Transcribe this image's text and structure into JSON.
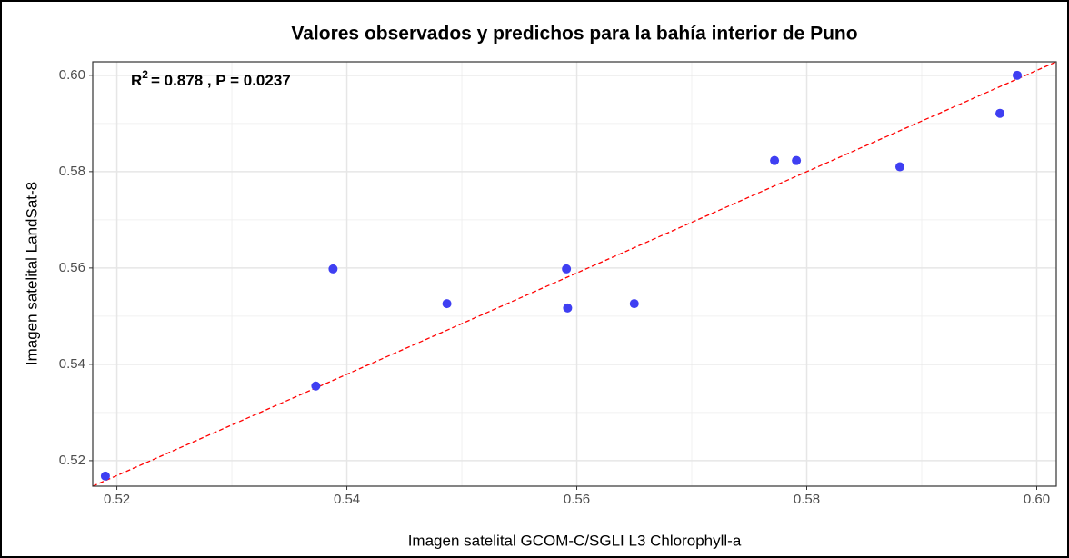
{
  "chart_data": {
    "type": "scatter",
    "title": "Valores observados y predichos para la bahía interior de Puno",
    "x_label": "Imagen satelital GCOM-C/SGLI L3 Chlorophyll-a",
    "y_label": "Imagen satelital LandSat-8",
    "annotation": {
      "base": "R",
      "superscript": "2",
      "rest": "= 0.878 , P = 0.0237"
    },
    "x": [
      0.519,
      0.5373,
      0.5388,
      0.5487,
      0.5591,
      0.5592,
      0.565,
      0.5772,
      0.5791,
      0.5881,
      0.5968,
      0.5983
    ],
    "values": [
      0.5168,
      0.5355,
      0.5598,
      0.5526,
      0.5598,
      0.5517,
      0.5526,
      0.5823,
      0.5823,
      0.581,
      0.5921,
      0.6
    ],
    "color": "#3f3ff2",
    "trend_line": {
      "x": [
        0.5179,
        0.6017
      ],
      "y": [
        0.5147,
        0.6028
      ],
      "color": "#ff0000"
    },
    "xlim": [
      0.5179,
      0.6017
    ],
    "ylim": [
      0.5147,
      0.6028
    ],
    "xticks": [
      {
        "value": 0.52,
        "label": "0.52"
      },
      {
        "value": 0.54,
        "label": "0.54"
      },
      {
        "value": 0.56,
        "label": "0.56"
      },
      {
        "value": 0.58,
        "label": "0.58"
      },
      {
        "value": 0.6,
        "label": "0.60"
      }
    ],
    "yticks": [
      {
        "value": 0.52,
        "label": "0.52"
      },
      {
        "value": 0.54,
        "label": "0.54"
      },
      {
        "value": 0.56,
        "label": "0.56"
      },
      {
        "value": 0.58,
        "label": "0.58"
      },
      {
        "value": 0.6,
        "label": "0.60"
      }
    ],
    "xminor": [
      0.53,
      0.55,
      0.57,
      0.59
    ],
    "yminor": [
      0.53,
      0.55,
      0.57,
      0.59
    ],
    "grid": true
  }
}
